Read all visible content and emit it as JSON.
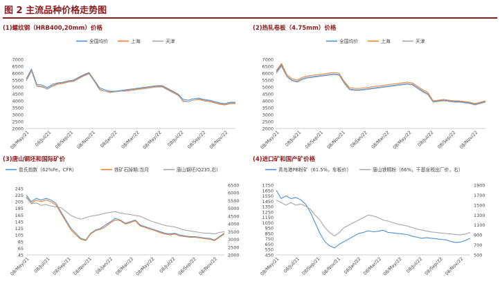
{
  "figure_title": "图 2 主流品种价格走势图",
  "colors": {
    "blue": "#4a8fd4",
    "orange": "#ee7d31",
    "gray": "#a6a6a6",
    "title": "#8b1a1a"
  },
  "panels": [
    {
      "title": "(1)螺纹钢（HRB400,20mm）价格"
    },
    {
      "title": "(2)热轧卷板（4.75mm）价格"
    },
    {
      "title": "(3)唐山钢坯和国际矿价"
    },
    {
      "title": "(4)进口矿和国产矿价格"
    }
  ],
  "chart_data": [
    {
      "type": "line",
      "title": "(1)螺纹钢（HRB400,20mm）价格",
      "ylim": [
        2000,
        7000
      ],
      "yticks": [
        "2000",
        "2500",
        "3000",
        "3500",
        "4000",
        "4500",
        "5000",
        "5500",
        "6000",
        "6500",
        "7000"
      ],
      "xticks": [
        "08/May/21",
        "08/Jul/21",
        "08/Sep/21",
        "08/Nov/21",
        "08/Jan/22",
        "08/Mar/22",
        "08/May/22",
        "08/Jul/22",
        "08/Sep/22",
        "08/Nov/22"
      ],
      "legend": "top",
      "series": [
        {
          "name": "全国均价",
          "color": "blue",
          "values": [
            5600,
            6300,
            5200,
            5150,
            4950,
            5200,
            5300,
            5350,
            5450,
            5500,
            5700,
            5900,
            6050,
            5500,
            4950,
            4800,
            4700,
            4700,
            4750,
            4800,
            4850,
            4900,
            4950,
            5000,
            5050,
            5100,
            5100,
            4900,
            4700,
            4500,
            4100,
            4050,
            4150,
            4200,
            4100,
            4050,
            3950,
            3850,
            3800,
            3900,
            3900
          ]
        },
        {
          "name": "上海",
          "color": "orange",
          "values": [
            5500,
            6200,
            5100,
            5050,
            4850,
            5100,
            5250,
            5300,
            5400,
            5450,
            5650,
            5850,
            6000,
            5450,
            4850,
            4700,
            4650,
            4650,
            4700,
            4750,
            4800,
            4850,
            4900,
            4950,
            5000,
            5050,
            5050,
            4850,
            4650,
            4450,
            3950,
            3950,
            4050,
            4100,
            4000,
            3950,
            3850,
            3750,
            3700,
            3800,
            3800
          ]
        },
        {
          "name": "天津",
          "color": "gray",
          "values": [
            5450,
            6150,
            5050,
            5000,
            4850,
            5050,
            5200,
            5250,
            5350,
            5400,
            5600,
            5800,
            5950,
            5400,
            4800,
            4700,
            4600,
            4650,
            4700,
            4700,
            4750,
            4800,
            4850,
            4900,
            4950,
            5000,
            5000,
            4800,
            4600,
            4400,
            4000,
            3950,
            4050,
            4150,
            4050,
            4000,
            3900,
            3800,
            3750,
            3850,
            3850
          ]
        }
      ]
    },
    {
      "type": "line",
      "title": "(2)热轧卷板（4.75mm）价格",
      "ylim": [
        2000,
        7000
      ],
      "yticks": [
        "2000",
        "2500",
        "3000",
        "3500",
        "4000",
        "4500",
        "5000",
        "5500",
        "6000",
        "6500",
        "7000"
      ],
      "xticks": [
        "08/May/21",
        "08/Jul/21",
        "08/Sep/21",
        "08/Nov/21",
        "08/Jan/22",
        "08/Mar/22",
        "08/May/22",
        "08/Jul/22",
        "08/Sep/22",
        "08/Nov/22"
      ],
      "legend": "top",
      "series": [
        {
          "name": "全国均价",
          "color": "blue",
          "values": [
            6100,
            6600,
            5800,
            5500,
            5400,
            5600,
            5700,
            5750,
            5800,
            5850,
            5900,
            5950,
            5900,
            5300,
            4850,
            4800,
            4800,
            4850,
            4900,
            4950,
            5000,
            5050,
            5100,
            5150,
            5200,
            5250,
            5200,
            4950,
            4700,
            4500,
            3950,
            4000,
            4050,
            4000,
            3950,
            3950,
            3900,
            3850,
            3750,
            3850,
            3950
          ]
        },
        {
          "name": "上海",
          "color": "orange",
          "values": [
            6200,
            6700,
            5900,
            5600,
            5500,
            5700,
            5800,
            5850,
            5900,
            5950,
            6000,
            6050,
            6000,
            5400,
            4950,
            4900,
            4900,
            4950,
            5000,
            5050,
            5100,
            5150,
            5200,
            5250,
            5300,
            5350,
            5300,
            5050,
            4800,
            4600,
            4000,
            4050,
            4100,
            4050,
            4000,
            4000,
            3950,
            3900,
            3800,
            3900,
            4000
          ]
        },
        {
          "name": "天津",
          "color": "gray",
          "values": [
            6000,
            6500,
            5750,
            5450,
            5350,
            5550,
            5650,
            5700,
            5750,
            5800,
            5850,
            5900,
            5850,
            5250,
            4800,
            4750,
            4750,
            4800,
            4850,
            4900,
            4950,
            5000,
            5050,
            5100,
            5150,
            5200,
            5150,
            4900,
            4650,
            4450,
            3900,
            3950,
            4000,
            3950,
            3900,
            3900,
            3850,
            3800,
            3700,
            3800,
            3900
          ]
        }
      ]
    },
    {
      "type": "line",
      "title": "(3)唐山钢坯和国际矿价",
      "ylim": [
        45,
        255
      ],
      "y2lim": [
        2000,
        6500
      ],
      "yticks": [
        "45",
        "65",
        "85",
        "105",
        "125",
        "145",
        "165",
        "185",
        "205",
        "225",
        "245"
      ],
      "y2ticks": [
        "2000",
        "2500",
        "3000",
        "3500",
        "4000",
        "4500",
        "5000",
        "5500",
        "6000",
        "6500"
      ],
      "xticks": [
        "08/May/21",
        "08/Jul/21",
        "08/Sep/21",
        "08/Nov/21",
        "08/Jan/22",
        "08/Mar/22",
        "08/May/22",
        "08/Jul/22",
        "08/Sep/22",
        "08/Nov/22"
      ],
      "legend": "top",
      "series": [
        {
          "name": "普氏指数（62%Fe，CFR）",
          "color": "blue",
          "axis": "left",
          "values": [
            225,
            205,
            215,
            210,
            215,
            210,
            200,
            175,
            150,
            125,
            110,
            95,
            90,
            110,
            120,
            125,
            135,
            145,
            155,
            150,
            140,
            145,
            150,
            135,
            130,
            125,
            120,
            115,
            110,
            108,
            110,
            105,
            102,
            100,
            100,
            98,
            96,
            95,
            90,
            100,
            110
          ]
        },
        {
          "name": "铁矿石掉期:当月",
          "color": "orange",
          "axis": "left",
          "values": [
            220,
            200,
            210,
            205,
            210,
            205,
            195,
            170,
            145,
            120,
            105,
            92,
            88,
            108,
            118,
            122,
            130,
            142,
            150,
            148,
            138,
            142,
            148,
            132,
            128,
            122,
            118,
            112,
            108,
            105,
            108,
            102,
            100,
            98,
            98,
            96,
            94,
            92,
            88,
            98,
            108
          ]
        },
        {
          "name": "唐山钢坯(Q235,右)",
          "color": "gray",
          "axis": "right",
          "values": [
            5700,
            5300,
            5350,
            5200,
            5250,
            5150,
            5100,
            5050,
            4800,
            4550,
            4400,
            4300,
            4400,
            4500,
            4550,
            4600,
            4700,
            4750,
            4800,
            4700,
            4650,
            4600,
            4550,
            4500,
            4350,
            4200,
            4100,
            4000,
            3900,
            3850,
            3800,
            3700,
            3600,
            3550,
            3500,
            3450,
            3400,
            3400,
            3350,
            3450,
            3500
          ]
        }
      ]
    },
    {
      "type": "line",
      "title": "(4)进口矿和国产矿价格",
      "ylim": [
        450,
        1750
      ],
      "y2lim": [
        500,
        1900
      ],
      "yticks": [
        "450",
        "550",
        "650",
        "750",
        "850",
        "950",
        "1050",
        "1150",
        "1250",
        "1350",
        "1450",
        "1550",
        "1650",
        "1750"
      ],
      "y2ticks": [
        "500",
        "700",
        "900",
        "1100",
        "1300",
        "1500",
        "1700",
        "1900"
      ],
      "xticks": [
        "08/May/21",
        "08/Jul/21",
        "08/Sep/21",
        "08/Nov/21",
        "08/Jan/22",
        "08/Mar/22",
        "08/May/22",
        "08/Jul/22",
        "08/Sep/22",
        "08/Nov/22"
      ],
      "legend": "top",
      "series": [
        {
          "name": "青岛港PB粉矿（61.5%，车板价）",
          "color": "blue",
          "axis": "left",
          "values": [
            1650,
            1500,
            1550,
            1500,
            1520,
            1480,
            1400,
            1250,
            1050,
            850,
            700,
            620,
            580,
            650,
            700,
            750,
            800,
            850,
            870,
            900,
            880,
            890,
            910,
            870,
            860,
            850,
            840,
            830,
            800,
            780,
            760,
            770,
            760,
            750,
            740,
            730,
            700,
            680,
            690,
            720,
            760
          ]
        },
        {
          "name": "唐山铁精粉（66%，干基含税出厂价，右）",
          "color": "gray",
          "axis": "right",
          "values": [
            1600,
            1550,
            1500,
            1550,
            1500,
            1520,
            1480,
            1420,
            1300,
            1200,
            1050,
            950,
            880,
            950,
            1050,
            1100,
            1150,
            1200,
            1250,
            1300,
            1280,
            1250,
            1200,
            1180,
            1150,
            1120,
            1100,
            1080,
            1050,
            1020,
            1000,
            980,
            960,
            950,
            940,
            930,
            920,
            910,
            900,
            920,
            950
          ]
        }
      ]
    }
  ]
}
